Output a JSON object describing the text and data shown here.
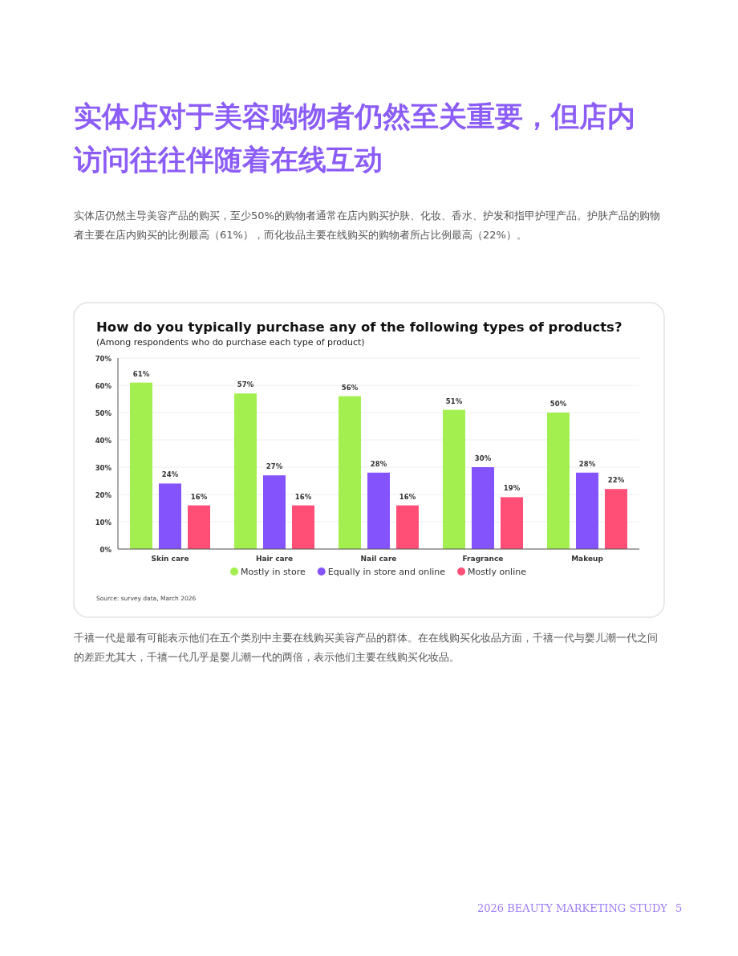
{
  "chart_data": {
    "type": "bar",
    "title": "How do you typically purchase any of the following types of products?",
    "subtitle": "(Among respondents who do purchase each type of product)",
    "categories": [
      "Skin care",
      "Hair care",
      "Nail care",
      "Fragrance",
      "Makeup"
    ],
    "series": [
      {
        "name": "Mostly in store",
        "color": "#a3ef4f",
        "values": [
          61,
          57,
          56,
          51,
          50
        ],
        "value_labels": [
          "61%",
          "57%",
          "56%",
          "51%",
          "50%"
        ]
      },
      {
        "name": "Equally in store and online",
        "color": "#8453fc",
        "values": [
          24,
          27,
          28,
          30,
          28
        ],
        "value_labels": [
          "24%",
          "27%",
          "28%",
          "30%",
          "28%"
        ]
      },
      {
        "name": "Mostly online",
        "color": "#ff4f77",
        "values": [
          16,
          16,
          16,
          19,
          22
        ],
        "value_labels": [
          "16%",
          "16%",
          "16%",
          "19%",
          "22%"
        ]
      }
    ],
    "ylim": [
      0,
      70
    ],
    "yticks": [
      {
        "value": 0,
        "label": "0%"
      },
      {
        "value": 10,
        "label": "10%"
      },
      {
        "value": 20,
        "label": "20%"
      },
      {
        "value": 30,
        "label": "30%"
      },
      {
        "value": 40,
        "label": "40%"
      },
      {
        "value": 50,
        "label": "50%"
      },
      {
        "value": 60,
        "label": "60%"
      },
      {
        "value": 70,
        "label": "70%"
      }
    ],
    "grid": "y",
    "legend": "bottom",
    "annotations": [
      "实体店对于美容购物者仍然至关重要，但店内访问往往伴随着在线互动",
      "实体店仍然主导美容产品的购买，至少50%的购物者通常在店内购买护肤、化妆、香水、护发和指甲护理产品。护肤产品的购物者主要在店内购买的比例最高（61%），而化妆品主要在线购买的购物者所占比例最高（22%）。",
      "Source: survey data, March 2026",
      "千禧一代是最有可能表示他们在五个类别中主要在线购买美容产品的群体。在在线购买化妆品方面，千禧一代与婴儿潮一代之间的差距尤其大，千禧一代几乎是婴儿潮一代的两倍，表示他们主要在线购买化妆品。",
      "2026 BEAUTY MARKETING STUDY",
      "5"
    ]
  }
}
